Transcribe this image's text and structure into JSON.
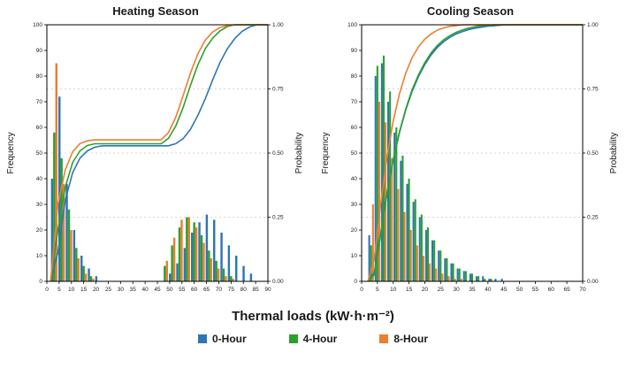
{
  "figure": {
    "background": "#ffffff",
    "xaxis_title": "Thermal loads (kW·h·m⁻²)"
  },
  "legend": {
    "items": [
      {
        "label": "0-Hour",
        "color": "#2E75B6"
      },
      {
        "label": "4-Hour",
        "color": "#2CA02C"
      },
      {
        "label": "8-Hour",
        "color": "#ED7D31"
      }
    ]
  },
  "chart_data": [
    {
      "type": "bar",
      "subtype": "histogram-with-cumulative-probability",
      "title": "Heating Season",
      "ylabel": "Frequency",
      "y2label": "Probability",
      "xlim": [
        0,
        90
      ],
      "x_ticks": [
        0,
        5,
        10,
        15,
        20,
        25,
        30,
        35,
        40,
        45,
        50,
        55,
        60,
        65,
        70,
        75,
        80,
        85,
        90
      ],
      "ylim": [
        0,
        100
      ],
      "y_ticks": [
        0,
        10,
        20,
        30,
        40,
        50,
        60,
        70,
        80,
        90,
        100
      ],
      "y2lim": [
        0,
        1
      ],
      "y2_ticks": [
        0,
        0.25,
        0.5,
        0.75,
        1
      ],
      "grid": "horizontal-dotted",
      "bin_width": 3,
      "bin_centers": [
        3,
        6,
        9,
        12,
        15,
        18,
        21,
        24,
        27,
        30,
        33,
        36,
        39,
        42,
        45,
        48,
        51,
        54,
        57,
        60,
        63,
        66,
        69,
        72,
        75,
        78,
        81,
        84
      ],
      "series": [
        {
          "name": "0-Hour",
          "color": "#2E75B6",
          "freq": [
            40,
            72,
            38,
            20,
            10,
            5,
            2,
            0,
            0,
            0,
            0,
            0,
            0,
            0,
            0,
            0,
            3,
            7,
            13,
            19,
            23,
            26,
            24,
            19,
            14,
            10,
            6,
            3
          ]
        },
        {
          "name": "4-Hour",
          "color": "#2CA02C",
          "freq": [
            58,
            48,
            28,
            13,
            6,
            2,
            0,
            0,
            0,
            0,
            0,
            0,
            0,
            0,
            0,
            6,
            14,
            21,
            25,
            23,
            18,
            12,
            8,
            5,
            2,
            0,
            0,
            0
          ]
        },
        {
          "name": "8-Hour",
          "color": "#ED7D31",
          "freq": [
            85,
            38,
            20,
            9,
            3,
            1,
            0,
            0,
            0,
            0,
            0,
            0,
            0,
            0,
            0,
            8,
            17,
            24,
            25,
            21,
            15,
            9,
            5,
            2,
            1,
            0,
            0,
            0
          ]
        }
      ]
    },
    {
      "type": "bar",
      "subtype": "histogram-with-cumulative-probability",
      "title": "Cooling Season",
      "ylabel": "Frequency",
      "y2label": "Probability",
      "xlim": [
        0,
        70
      ],
      "x_ticks": [
        0,
        5,
        10,
        15,
        20,
        25,
        30,
        35,
        40,
        45,
        50,
        55,
        60,
        65,
        70
      ],
      "ylim": [
        0,
        100
      ],
      "y_ticks": [
        0,
        10,
        20,
        30,
        40,
        50,
        60,
        70,
        80,
        90,
        100
      ],
      "y2lim": [
        0,
        1
      ],
      "y2_ticks": [
        0,
        0.25,
        0.5,
        0.75,
        1
      ],
      "grid": "horizontal-dotted",
      "bin_width": 2,
      "bin_centers": [
        3,
        5,
        7,
        9,
        11,
        13,
        15,
        17,
        19,
        21,
        23,
        25,
        27,
        29,
        31,
        33,
        35,
        37,
        39,
        41,
        43,
        45,
        47,
        49
      ],
      "series": [
        {
          "name": "0-Hour",
          "color": "#2E75B6",
          "freq": [
            18,
            80,
            85,
            70,
            58,
            47,
            38,
            31,
            25,
            20,
            16,
            12,
            9,
            7,
            5,
            4,
            3,
            2,
            2,
            1,
            1,
            1,
            0,
            0
          ]
        },
        {
          "name": "4-Hour",
          "color": "#2CA02C",
          "freq": [
            14,
            84,
            88,
            74,
            60,
            49,
            40,
            32,
            26,
            21,
            16,
            12,
            9,
            7,
            5,
            4,
            3,
            2,
            1,
            1,
            0,
            0,
            0,
            0
          ]
        },
        {
          "name": "8-Hour",
          "color": "#ED7D31",
          "freq": [
            30,
            70,
            62,
            48,
            36,
            27,
            20,
            14,
            10,
            7,
            5,
            3,
            2,
            1,
            1,
            0,
            0,
            0,
            0,
            0,
            0,
            0,
            0,
            0
          ]
        }
      ]
    }
  ]
}
